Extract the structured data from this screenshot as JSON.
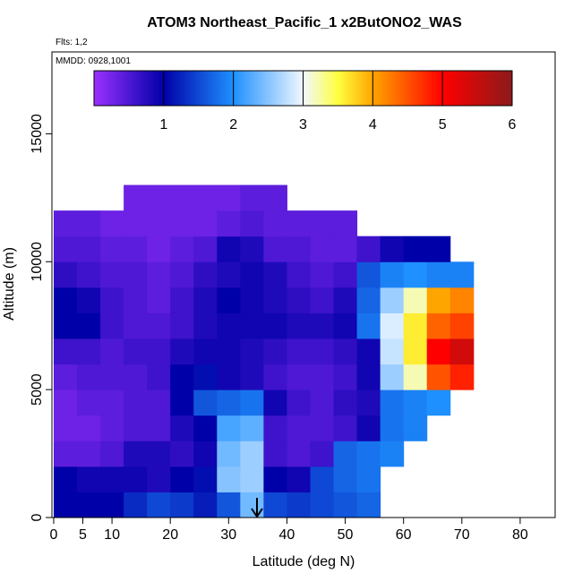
{
  "chart_data": {
    "type": "heatmap",
    "title": "ATOM3 Northeast_Pacific_1 x2ButONO2_WAS",
    "subtitle": "Flts: 1,2",
    "annotation": "MMDD: 0928,1001",
    "xlabel": "Latitude (deg N)",
    "ylabel": "Altitude (m)",
    "xlim": [
      -0.3,
      86
    ],
    "ylim": [
      0,
      18200
    ],
    "xticks": [
      0,
      5,
      10,
      20,
      30,
      40,
      50,
      60,
      70,
      80
    ],
    "yticks": [
      0,
      5000,
      10000,
      15000
    ],
    "x_bins": [
      0,
      4,
      8,
      12,
      16,
      20,
      24,
      28,
      32,
      36,
      40,
      44,
      48,
      52,
      56,
      60,
      64,
      68,
      72
    ],
    "y_bins": [
      0,
      1000,
      2000,
      3000,
      4000,
      5000,
      6000,
      7000,
      8000,
      9000,
      10000,
      11000,
      12000,
      13000
    ],
    "z": [
      [
        1.0,
        1.0,
        1.0,
        1.3,
        1.5,
        1.4,
        1.2,
        1.6,
        2.4,
        1.5,
        1.4,
        1.5,
        1.6,
        1.7,
        null,
        null,
        null,
        null
      ],
      [
        1.0,
        0.9,
        0.9,
        0.9,
        0.8,
        1.0,
        1.1,
        2.5,
        2.6,
        1.0,
        0.9,
        1.5,
        1.7,
        1.8,
        null,
        null,
        null,
        null
      ],
      [
        0.4,
        0.4,
        0.5,
        0.8,
        0.8,
        0.7,
        0.9,
        2.4,
        2.6,
        0.6,
        0.5,
        0.6,
        1.7,
        1.8,
        1.9,
        null,
        null,
        null
      ],
      [
        0.3,
        0.3,
        0.4,
        0.5,
        0.5,
        0.8,
        1.0,
        2.2,
        2.3,
        0.6,
        0.5,
        0.5,
        0.6,
        0.9,
        1.8,
        1.9,
        null,
        null
      ],
      [
        0.3,
        0.4,
        0.4,
        0.5,
        0.5,
        1.0,
        1.6,
        1.7,
        1.8,
        0.9,
        0.6,
        0.5,
        0.7,
        0.8,
        1.8,
        1.9,
        2.0,
        null
      ],
      [
        0.4,
        0.5,
        0.5,
        0.5,
        0.6,
        1.0,
        1.1,
        0.9,
        0.8,
        0.6,
        0.5,
        0.5,
        0.6,
        0.9,
        2.6,
        3.2,
        4.5,
        4.8
      ],
      [
        0.6,
        0.6,
        0.5,
        0.6,
        0.6,
        0.8,
        0.9,
        0.9,
        0.8,
        0.7,
        0.6,
        0.6,
        0.7,
        0.9,
        2.8,
        3.6,
        5.0,
        5.4
      ],
      [
        1.0,
        1.0,
        0.6,
        0.5,
        0.5,
        0.6,
        0.8,
        0.9,
        0.9,
        0.9,
        0.8,
        0.8,
        0.9,
        1.8,
        2.9,
        3.6,
        4.4,
        4.6
      ],
      [
        1.0,
        0.9,
        0.6,
        0.5,
        0.4,
        0.6,
        0.8,
        1.0,
        0.9,
        0.8,
        0.7,
        0.6,
        0.8,
        1.7,
        2.6,
        3.2,
        4.0,
        4.2
      ],
      [
        0.7,
        0.6,
        0.5,
        0.5,
        0.4,
        0.5,
        0.7,
        0.8,
        0.9,
        0.8,
        0.6,
        0.5,
        0.6,
        1.6,
        1.9,
        2.0,
        1.9,
        1.9
      ],
      [
        0.5,
        0.5,
        0.4,
        0.4,
        0.3,
        0.4,
        0.5,
        0.9,
        0.8,
        0.5,
        0.5,
        0.4,
        0.4,
        0.6,
        0.9,
        1.0,
        1.0,
        null
      ],
      [
        0.4,
        0.4,
        0.3,
        0.3,
        0.3,
        0.3,
        0.3,
        0.4,
        0.5,
        0.4,
        0.4,
        0.4,
        0.4,
        null,
        null,
        null,
        null,
        null
      ],
      [
        null,
        null,
        null,
        0.3,
        0.3,
        0.3,
        0.3,
        0.3,
        0.4,
        0.4,
        null,
        null,
        null,
        null,
        null,
        null,
        null,
        null
      ]
    ],
    "clim": [
      0,
      6
    ],
    "cticks": [
      1,
      2,
      3,
      4,
      5,
      6
    ],
    "colorscale": [
      [
        0,
        "#9b30ff"
      ],
      [
        1,
        "#0000a8"
      ],
      [
        2,
        "#1e90ff"
      ],
      [
        3,
        "#f0f8ff"
      ],
      [
        3.5,
        "#ffff40"
      ],
      [
        4,
        "#ffa500"
      ],
      [
        5,
        "#ff0000"
      ],
      [
        6,
        "#8b1a1a"
      ]
    ]
  }
}
